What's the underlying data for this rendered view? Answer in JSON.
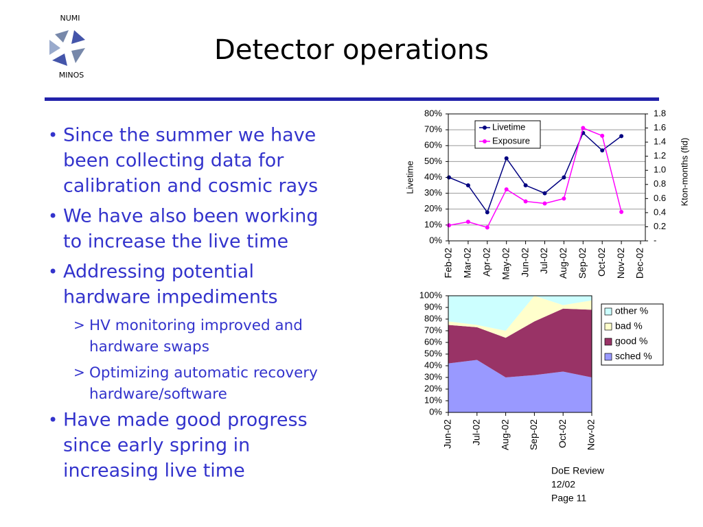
{
  "logo": {
    "top": "NUMI",
    "bottom": "MINOS"
  },
  "header": {
    "title": "Detector operations"
  },
  "bullets": [
    {
      "lines": [
        "Since the summer we have",
        "been collecting data for",
        "calibration and cosmic rays"
      ]
    },
    {
      "lines": [
        "We have also been working",
        "to increase the live time"
      ]
    },
    {
      "lines": [
        "Addressing potential",
        "hardware impediments"
      ],
      "sub": [
        {
          "lines": [
            "HV monitoring improved and",
            "hardware swaps"
          ]
        },
        {
          "lines": [
            "Optimizing automatic recovery",
            "hardware/software"
          ]
        }
      ]
    },
    {
      "lines": [
        "Have made good progress",
        "since early spring in",
        "increasing live time"
      ]
    }
  ],
  "footer": [
    "DoE Review",
    "12/02",
    "Page 11"
  ],
  "chart_data": [
    {
      "type": "line",
      "categories": [
        "Feb-02",
        "Mar-02",
        "Apr-02",
        "May-02",
        "Jun-02",
        "Jul-02",
        "Aug-02",
        "Sep-02",
        "Oct-02",
        "Nov-02",
        "Dec-02"
      ],
      "series": [
        {
          "name": "Livetime",
          "color": "#000080",
          "values": [
            40,
            35,
            18,
            52,
            35,
            30,
            40,
            68,
            57,
            66,
            null
          ]
        },
        {
          "name": "Exposure",
          "color": "#ff00ff",
          "axis": "y2",
          "values": [
            0.22,
            0.27,
            0.19,
            0.73,
            0.56,
            0.53,
            0.6,
            1.6,
            1.49,
            0.41,
            null
          ]
        }
      ],
      "ylabel": "Livetime",
      "y2label": "Kton-months (fid)",
      "ylim": [
        0,
        80
      ],
      "yticks": [
        {
          "value": 0,
          "label": "0%"
        },
        {
          "value": 10,
          "label": "10%"
        },
        {
          "value": 20,
          "label": "20%"
        },
        {
          "value": 30,
          "label": "30%"
        },
        {
          "value": 40,
          "label": "40%"
        },
        {
          "value": 50,
          "label": "50%"
        },
        {
          "value": 60,
          "label": "60%"
        },
        {
          "value": 70,
          "label": "70%"
        },
        {
          "value": 80,
          "label": "80%"
        }
      ],
      "y2lim": [
        0,
        1.8
      ],
      "y2ticks": [
        {
          "value": 0,
          "label": "-"
        },
        0.2,
        0.4,
        0.6,
        0.8,
        {
          "value": 1,
          "label": "1.0"
        },
        1.2,
        1.4,
        1.6,
        1.8
      ],
      "grid": true,
      "legend": "upper left"
    },
    {
      "type": "area",
      "stacked": true,
      "categories": [
        "Jun-02",
        "Jul-02",
        "Aug-02",
        "Sep-02",
        "Oct-02",
        "Nov-02"
      ],
      "series": [
        {
          "name": "sched %",
          "color": "#9999ff",
          "values": [
            42,
            45,
            30,
            32,
            35,
            30
          ]
        },
        {
          "name": "good %",
          "color": "#993366",
          "values": [
            33,
            28,
            34,
            46,
            54,
            58
          ]
        },
        {
          "name": "bad %",
          "color": "#ffffcc",
          "values": [
            3,
            2,
            6,
            22,
            3,
            8
          ]
        },
        {
          "name": "other %",
          "color": "#ccffff",
          "values": [
            22,
            25,
            30,
            0,
            8,
            4
          ]
        }
      ],
      "ylim": [
        0,
        100
      ],
      "yticks": [
        {
          "value": 0,
          "label": "0%"
        },
        {
          "value": 10,
          "label": "10%"
        },
        {
          "value": 20,
          "label": "20%"
        },
        {
          "value": 30,
          "label": "30%"
        },
        {
          "value": 40,
          "label": "40%"
        },
        {
          "value": 50,
          "label": "50%"
        },
        {
          "value": 60,
          "label": "60%"
        },
        {
          "value": 70,
          "label": "70%"
        },
        {
          "value": 80,
          "label": "80%"
        },
        {
          "value": 90,
          "label": "90%"
        },
        {
          "value": 100,
          "label": "100%"
        }
      ],
      "grid": false,
      "legend": "right"
    }
  ]
}
